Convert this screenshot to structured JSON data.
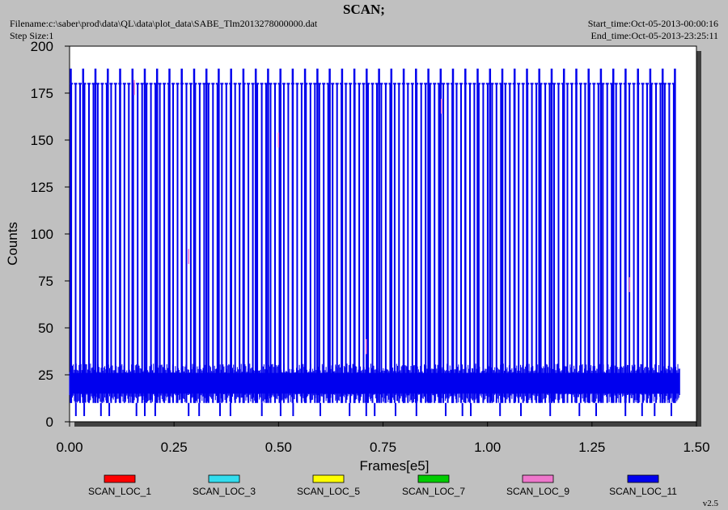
{
  "header": {
    "title": "SCAN;",
    "filename": "Filename:c:\\saber\\prod\\data\\QL\\data\\plot_data\\SABE_Tlm2013278000000.dat",
    "step_size": "Step Size:1",
    "start_time": "Start_time:Oct-05-2013-00:00:16",
    "end_time": "End_time:Oct-05-2013-23:25:11"
  },
  "version": "v2.5",
  "chart_data": {
    "type": "line",
    "title": "SCAN;",
    "xlabel": "Frames[e5]",
    "ylabel": "Counts",
    "xlim": [
      0,
      1.5
    ],
    "ylim": [
      0,
      200
    ],
    "x_ticks": [
      "0.00",
      "0.25",
      "0.50",
      "0.75",
      "1.00",
      "1.25",
      "1.50"
    ],
    "y_ticks": [
      "0",
      "25",
      "50",
      "75",
      "100",
      "125",
      "150",
      "175",
      "200"
    ],
    "grid": false,
    "legend_position": "bottom",
    "series": [
      {
        "name": "SCAN_LOC_1",
        "color": "#ff0000"
      },
      {
        "name": "SCAN_LOC_3",
        "color": "#33ddee"
      },
      {
        "name": "SCAN_LOC_5",
        "color": "#ffff00"
      },
      {
        "name": "SCAN_LOC_7",
        "color": "#00cc00"
      },
      {
        "name": "SCAN_LOC_9",
        "color": "#ee77cc"
      },
      {
        "name": "SCAN_LOC_11",
        "color": "#0000ee",
        "x_range": [
          0.0,
          1.46
        ],
        "baseline_band": [
          10,
          30
        ],
        "scan_peak_level": 180,
        "scan_period": 0.0106,
        "spike_level": 188,
        "spike_period": 0.0295,
        "spike_x": [
          0.0,
          1.45
        ],
        "low_dip_level": 3,
        "low_dip_x": [
          0.015,
          0.035,
          0.075,
          0.095,
          0.16,
          0.18,
          0.205,
          0.285,
          0.31,
          0.36,
          0.385,
          0.46,
          0.505,
          0.535,
          0.6,
          0.67,
          0.71,
          0.73,
          0.78,
          0.83,
          0.9,
          0.94,
          0.96,
          1.03,
          1.08,
          1.15,
          1.22,
          1.26,
          1.33,
          1.37,
          1.4,
          1.44
        ]
      }
    ],
    "annotations": [
      {
        "series": "SCAN_LOC_9",
        "x": 0.285,
        "y": 88
      },
      {
        "series": "SCAN_LOC_9",
        "x": 0.5,
        "y": 150
      },
      {
        "series": "SCAN_LOC_9",
        "x": 0.155,
        "y": 178
      },
      {
        "series": "SCAN_LOC_9",
        "x": 0.89,
        "y": 168
      },
      {
        "series": "SCAN_LOC_9",
        "x": 1.34,
        "y": 73
      },
      {
        "series": "SCAN_LOC_9",
        "x": 0.71,
        "y": 40
      }
    ]
  }
}
